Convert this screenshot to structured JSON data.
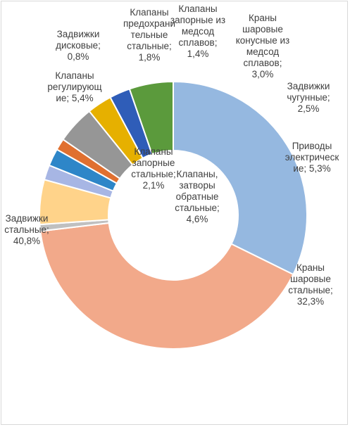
{
  "chart_data": {
    "type": "pie",
    "variant": "donut",
    "title": "",
    "slices": [
      {
        "name": "Краны шаровые стальные",
        "value": 32.3,
        "label_lines": [
          "Краны",
          "шаровые",
          "стальные;",
          "32,3%"
        ],
        "color": "#95b8e0"
      },
      {
        "name": "Задвижки стальные",
        "value": 40.8,
        "label_lines": [
          "Задвижки",
          "стальные;",
          "40,8%"
        ],
        "color": "#f2a98a"
      },
      {
        "name": "Задвижки дисковые",
        "value": 0.8,
        "label_lines": [
          "Задвижки",
          "дисковые;",
          "0,8%"
        ],
        "color": "#c0c0c0"
      },
      {
        "name": "Клапаны регулирующие",
        "value": 5.4,
        "label_lines": [
          "Клапаны",
          "регулирующ",
          "ие; 5,4%"
        ],
        "color": "#ffd38a"
      },
      {
        "name": "Клапаны предохранительные стальные",
        "value": 1.8,
        "label_lines": [
          "Клапаны",
          "предохрани",
          "тельные",
          "стальные;",
          "1,8%"
        ],
        "color": "#a7b6e4"
      },
      {
        "name": "Клапаны запорные стальные",
        "value": 2.1,
        "label_lines": [
          "Клапаны",
          "запорные",
          "стальные;",
          "2,1%"
        ],
        "color": "#2e86c8"
      },
      {
        "name": "Клапаны запорные из медсод сплавов",
        "value": 1.4,
        "label_lines": [
          "Клапаны",
          "запорные из",
          "медсод",
          "сплавов;",
          "1,4%"
        ],
        "color": "#e07030"
      },
      {
        "name": "Клапаны, затворы обратные стальные",
        "value": 4.6,
        "label_lines": [
          "Клапаны,",
          "затворы",
          "обратные",
          "стальные;",
          "4,6%"
        ],
        "color": "#969696"
      },
      {
        "name": "Краны шаровые конусные из медсод сплавов",
        "value": 3.0,
        "label_lines": [
          "Краны",
          "шаровые",
          "конусные из",
          "медсод",
          "сплавов;",
          "3,0%"
        ],
        "color": "#e6b000"
      },
      {
        "name": "Задвижки чугунные",
        "value": 2.5,
        "label_lines": [
          "Задвижки",
          "чугунные;",
          "2,5%"
        ],
        "color": "#2f5db8"
      },
      {
        "name": "Приводы электрические",
        "value": 5.3,
        "label_lines": [
          "Приводы",
          "электрическ",
          "ие; 5,3%"
        ],
        "color": "#5b9a3c"
      }
    ]
  }
}
